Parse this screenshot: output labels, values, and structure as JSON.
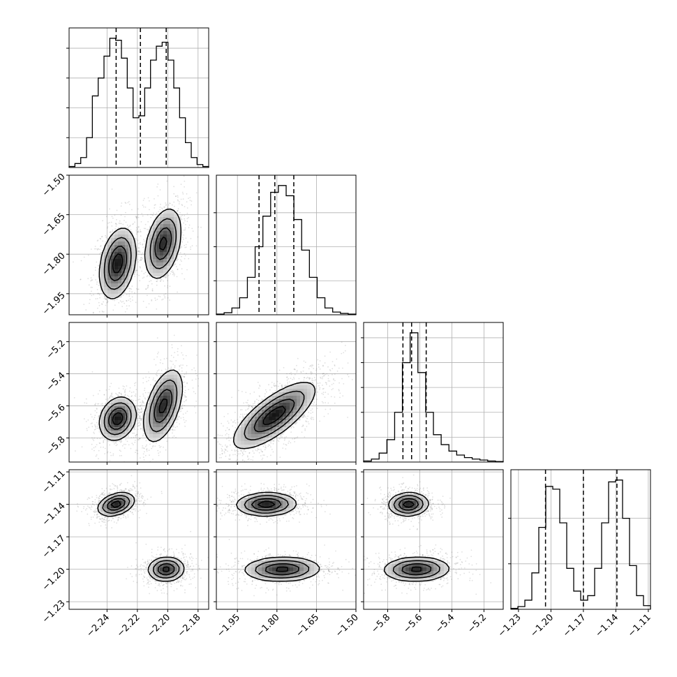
{
  "chart_data": {
    "type": "corner",
    "parameters": [
      {
        "id": "p1",
        "range": [
          -2.265,
          -2.173
        ],
        "ticks": [
          -2.24,
          -2.22,
          -2.2,
          -2.18
        ],
        "tick_labels": [
          "−2.24",
          "−2.22",
          "−2.20",
          "−2.18"
        ],
        "quantiles": [
          -2.234,
          -2.218,
          -2.201
        ]
      },
      {
        "id": "p2",
        "range": [
          -2.03,
          -1.5
        ],
        "ticks": [
          -1.5,
          -1.65,
          -1.8,
          -1.95
        ],
        "tick_labels": [
          "−1.50",
          "−1.65",
          "−1.80",
          "−1.95"
        ],
        "quantiles": [
          -1.868,
          -1.808,
          -1.736
        ]
      },
      {
        "id": "p3",
        "range": [
          -5.95,
          -5.08
        ],
        "ticks": [
          -5.2,
          -5.4,
          -5.6,
          -5.8
        ],
        "tick_labels": [
          "−5.2",
          "−5.4",
          "−5.6",
          "−5.8"
        ],
        "quantiles": [
          -5.705,
          -5.651,
          -5.56
        ]
      },
      {
        "id": "p4",
        "range": [
          -1.237,
          -1.108
        ],
        "ticks": [
          -1.11,
          -1.14,
          -1.17,
          -1.2,
          -1.23
        ],
        "tick_labels": [
          "−1.11",
          "−1.14",
          "−1.17",
          "−1.20",
          "−1.23"
        ],
        "quantiles": [
          -1.205,
          -1.17,
          -1.139
        ]
      }
    ],
    "histograms": [
      {
        "param": "p1",
        "counts": [
          1,
          4,
          10,
          30,
          72,
          90,
          112,
          130,
          128,
          110,
          80,
          50,
          52,
          80,
          108,
          122,
          126,
          108,
          80,
          50,
          25,
          10,
          3,
          1
        ]
      },
      {
        "param": "p2",
        "counts": [
          1,
          3,
          10,
          25,
          55,
          100,
          145,
          180,
          190,
          175,
          140,
          95,
          55,
          25,
          10,
          4,
          2,
          1
        ]
      },
      {
        "param": "p3",
        "counts": [
          2,
          6,
          18,
          45,
          100,
          200,
          260,
          180,
          100,
          55,
          35,
          22,
          14,
          9,
          6,
          4,
          2,
          1
        ]
      },
      {
        "param": "p4",
        "counts": [
          1,
          3,
          10,
          40,
          90,
          135,
          132,
          95,
          45,
          20,
          10,
          15,
          45,
          95,
          140,
          142,
          100,
          48,
          15,
          4
        ]
      }
    ],
    "histogram_y_ticks": {
      "p1": [
        30,
        60,
        90,
        120
      ],
      "p2": [
        50,
        100,
        150
      ],
      "p3": [
        50,
        100,
        150,
        200,
        250
      ],
      "p4": [
        50,
        100
      ]
    },
    "pairs": [
      {
        "x": "p1",
        "y": "p2",
        "modes": [
          {
            "cx": -2.233,
            "cy": -1.835,
            "sx": 0.0058,
            "sy": 0.065,
            "rho": 0.3,
            "w": 0.52
          },
          {
            "cx": -2.203,
            "cy": -1.76,
            "sx": 0.0058,
            "sy": 0.065,
            "rho": 0.35,
            "w": 0.48
          }
        ]
      },
      {
        "x": "p1",
        "y": "p3",
        "modes": [
          {
            "cx": -2.233,
            "cy": -5.68,
            "sx": 0.0058,
            "sy": 0.065,
            "rho": 0.2,
            "w": 0.52
          },
          {
            "cx": -2.203,
            "cy": -5.6,
            "sx": 0.0062,
            "sy": 0.11,
            "rho": 0.5,
            "w": 0.48
          }
        ]
      },
      {
        "x": "p2",
        "y": "p3",
        "modes": [
          {
            "cx": -1.81,
            "cy": -5.66,
            "sx": 0.075,
            "sy": 0.1,
            "rho": 0.75,
            "w": 1.0
          }
        ]
      },
      {
        "x": "p1",
        "y": "p4",
        "modes": [
          {
            "cx": -2.234,
            "cy": -1.14,
            "sx": 0.0058,
            "sy": 0.0052,
            "rho": 0.35,
            "w": 0.52
          },
          {
            "cx": -2.201,
            "cy": -1.2,
            "sx": 0.0058,
            "sy": 0.0055,
            "rho": 0.05,
            "w": 0.48
          }
        ]
      },
      {
        "x": "p2",
        "y": "p4",
        "modes": [
          {
            "cx": -1.84,
            "cy": -1.14,
            "sx": 0.055,
            "sy": 0.0052,
            "rho": 0.05,
            "w": 0.52
          },
          {
            "cx": -1.78,
            "cy": -1.2,
            "sx": 0.07,
            "sy": 0.0055,
            "rho": 0.05,
            "w": 0.48
          }
        ]
      },
      {
        "x": "p3",
        "y": "p4",
        "modes": [
          {
            "cx": -5.67,
            "cy": -1.14,
            "sx": 0.06,
            "sy": 0.0052,
            "rho": 0.05,
            "w": 0.52
          },
          {
            "cx": -5.62,
            "cy": -1.2,
            "sx": 0.1,
            "sy": 0.0055,
            "rho": 0.05,
            "w": 0.48
          }
        ]
      }
    ],
    "contour_levels": [
      0.12,
      0.32,
      0.6,
      0.85
    ],
    "quantile_line_style": "dashed",
    "grid": true,
    "colors": {
      "line": "#000000",
      "points": "#555555",
      "density": "#000000",
      "grid": "#b0b0b0"
    }
  }
}
